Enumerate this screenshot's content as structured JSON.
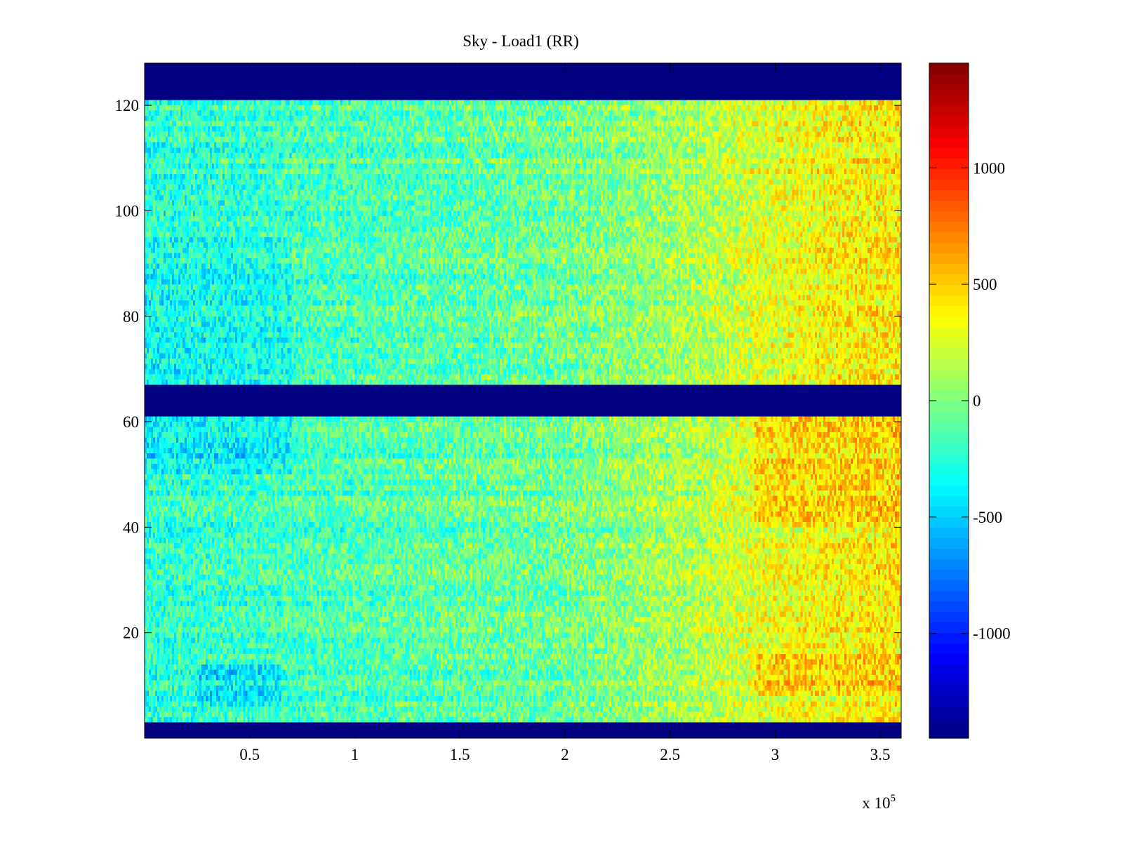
{
  "chart_data": {
    "type": "heatmap",
    "title": "Sky - Load1 (RR)",
    "xlabel": "",
    "ylabel": "",
    "x_multiplier_label": "x 10",
    "x_multiplier_exponent": "5",
    "xlim": [
      0,
      360000
    ],
    "ylim": [
      0,
      128
    ],
    "x_ticks": [
      {
        "value": 50000,
        "label": "0.5"
      },
      {
        "value": 100000,
        "label": "1"
      },
      {
        "value": 150000,
        "label": "1.5"
      },
      {
        "value": 200000,
        "label": "2"
      },
      {
        "value": 250000,
        "label": "2.5"
      },
      {
        "value": 300000,
        "label": "3"
      },
      {
        "value": 350000,
        "label": "3.5"
      }
    ],
    "y_ticks": [
      {
        "value": 20,
        "label": "20"
      },
      {
        "value": 40,
        "label": "40"
      },
      {
        "value": 60,
        "label": "60"
      },
      {
        "value": 80,
        "label": "80"
      },
      {
        "value": 100,
        "label": "100"
      },
      {
        "value": 120,
        "label": "120"
      }
    ],
    "colorbar": {
      "colormap": "jet",
      "clim": [
        -1450,
        1450
      ],
      "ticks": [
        {
          "value": 1000,
          "label": "1000"
        },
        {
          "value": 500,
          "label": "500"
        },
        {
          "value": 0,
          "label": "0"
        },
        {
          "value": -500,
          "label": "-500"
        },
        {
          "value": -1000,
          "label": "-1000"
        }
      ]
    },
    "masked_rows": [
      {
        "y_from": 0,
        "y_to": 3
      },
      {
        "y_from": 61,
        "y_to": 67
      },
      {
        "y_from": 121,
        "y_to": 128
      }
    ],
    "field": {
      "x_columns": 360,
      "y_rows": 128,
      "trend": [
        {
          "x": 0,
          "value": -250
        },
        {
          "x": 100000,
          "value": -150
        },
        {
          "x": 200000,
          "value": -50
        },
        {
          "x": 260000,
          "value": 120
        },
        {
          "x": 300000,
          "value": 300
        },
        {
          "x": 360000,
          "value": 420
        }
      ],
      "noise_amplitude": 260,
      "hot_regions": [
        {
          "x_from": 290000,
          "x_to": 360000,
          "y_from": 40,
          "y_to": 61,
          "value": 550
        },
        {
          "x_from": 290000,
          "x_to": 360000,
          "y_from": 8,
          "y_to": 16,
          "value": 600
        },
        {
          "x_from": 320000,
          "x_to": 360000,
          "y_from": 67,
          "y_to": 110,
          "value": 400
        }
      ],
      "cold_regions": [
        {
          "x_from": 0,
          "x_to": 70000,
          "y_from": 50,
          "y_to": 61,
          "value": -600
        },
        {
          "x_from": 25000,
          "x_to": 65000,
          "y_from": 6,
          "y_to": 14,
          "value": -650
        },
        {
          "x_from": 0,
          "x_to": 70000,
          "y_from": 67,
          "y_to": 95,
          "value": -450
        }
      ],
      "mask_value": -1450
    }
  }
}
